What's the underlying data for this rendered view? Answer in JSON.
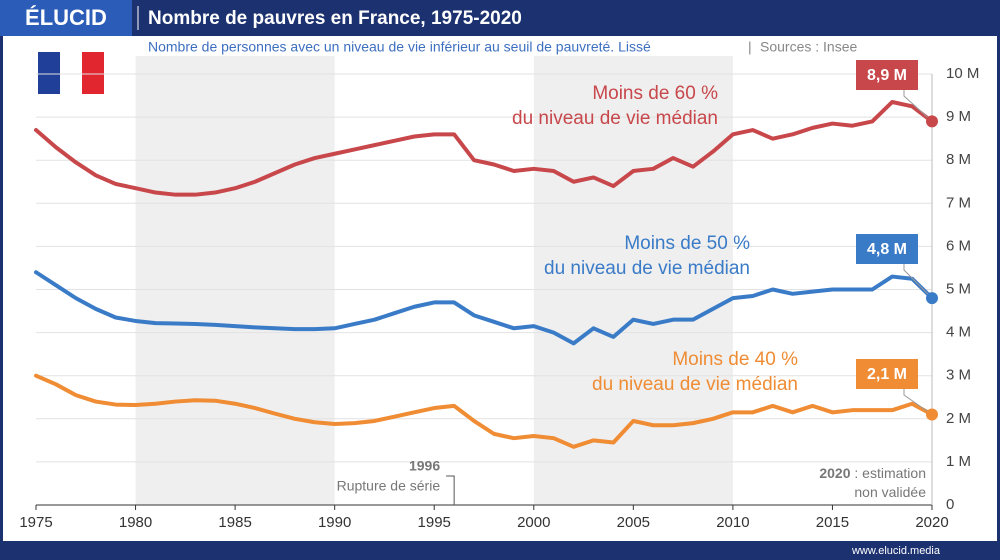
{
  "header": {
    "logo": "ÉLUCID",
    "footer": "www.elucid.media"
  },
  "chart_data": {
    "type": "line",
    "title": "Nombre de pauvres en France, 1975-2020",
    "subtitle": "Nombre de personnes avec un niveau de vie inférieur au seuil de pauvreté. Lissé",
    "source": "Sources : Insee",
    "x": [
      1975,
      1976,
      1977,
      1978,
      1979,
      1980,
      1981,
      1982,
      1983,
      1984,
      1985,
      1986,
      1987,
      1988,
      1989,
      1990,
      1991,
      1992,
      1993,
      1994,
      1995,
      1996,
      1997,
      1998,
      1999,
      2000,
      2001,
      2002,
      2003,
      2004,
      2005,
      2006,
      2007,
      2008,
      2009,
      2010,
      2011,
      2012,
      2013,
      2014,
      2015,
      2016,
      2017,
      2018,
      2019,
      2020
    ],
    "xlim": [
      1975,
      2020
    ],
    "xticks": [
      1975,
      1980,
      1985,
      1990,
      1995,
      2000,
      2005,
      2010,
      2015,
      2020
    ],
    "ylim": [
      0,
      10
    ],
    "yticks": [
      {
        "value": 0,
        "label": "0"
      },
      {
        "value": 1,
        "label": "1 M"
      },
      {
        "value": 2,
        "label": "2 M"
      },
      {
        "value": 3,
        "label": "3 M"
      },
      {
        "value": 4,
        "label": "4 M"
      },
      {
        "value": 5,
        "label": "5 M"
      },
      {
        "value": 6,
        "label": "6 M"
      },
      {
        "value": 7,
        "label": "7 M"
      },
      {
        "value": 8,
        "label": "8 M"
      },
      {
        "value": 9,
        "label": "9 M"
      },
      {
        "value": 10,
        "label": "10 M"
      }
    ],
    "series": [
      {
        "name": "Moins de 60 %\ndu niveau de vie médian",
        "color": "#c8474b",
        "values": [
          8.7,
          8.3,
          7.95,
          7.65,
          7.45,
          7.35,
          7.25,
          7.2,
          7.2,
          7.25,
          7.35,
          7.5,
          7.7,
          7.9,
          8.05,
          8.15,
          8.25,
          8.35,
          8.45,
          8.55,
          8.6,
          8.6,
          8.0,
          7.9,
          7.75,
          7.8,
          7.75,
          7.5,
          7.6,
          7.4,
          7.75,
          7.8,
          8.05,
          7.85,
          8.2,
          8.6,
          8.7,
          8.5,
          8.6,
          8.75,
          8.85,
          8.8,
          8.9,
          9.35,
          9.25,
          8.9
        ],
        "value_labels": [
          null,
          null,
          null,
          null,
          null,
          null,
          null,
          null,
          null,
          null,
          null,
          null,
          null,
          null,
          null,
          null,
          null,
          null,
          null,
          null,
          null,
          null,
          null,
          null,
          null,
          null,
          null,
          null,
          null,
          null,
          null,
          null,
          null,
          null,
          null,
          null,
          null,
          null,
          null,
          null,
          null,
          null,
          null,
          null,
          null,
          "8,9 M"
        ]
      },
      {
        "name": "Moins de 50 %\ndu niveau de vie médian",
        "color": "#3a7bc8",
        "values": [
          5.4,
          5.1,
          4.8,
          4.55,
          4.35,
          4.27,
          4.22,
          4.21,
          4.2,
          4.18,
          4.15,
          4.12,
          4.1,
          4.08,
          4.08,
          4.1,
          4.2,
          4.3,
          4.45,
          4.6,
          4.7,
          4.7,
          4.4,
          4.25,
          4.1,
          4.15,
          4.0,
          3.75,
          4.1,
          3.9,
          4.3,
          4.2,
          4.3,
          4.3,
          4.55,
          4.8,
          4.85,
          5.0,
          4.9,
          4.95,
          5.0,
          5.0,
          5.0,
          5.3,
          5.25,
          4.8
        ],
        "value_labels": [
          null,
          null,
          null,
          null,
          null,
          null,
          null,
          null,
          null,
          null,
          null,
          null,
          null,
          null,
          null,
          null,
          null,
          null,
          null,
          null,
          null,
          null,
          null,
          null,
          null,
          null,
          null,
          null,
          null,
          null,
          null,
          null,
          null,
          null,
          null,
          null,
          null,
          null,
          null,
          null,
          null,
          null,
          null,
          null,
          null,
          "4,8 M"
        ]
      },
      {
        "name": "Moins de 40 %\ndu niveau de vie médian",
        "color": "#ef8c34",
        "values": [
          3.0,
          2.8,
          2.55,
          2.4,
          2.33,
          2.32,
          2.35,
          2.4,
          2.43,
          2.42,
          2.35,
          2.25,
          2.12,
          2.0,
          1.92,
          1.88,
          1.9,
          1.95,
          2.05,
          2.15,
          2.25,
          2.3,
          1.95,
          1.65,
          1.55,
          1.6,
          1.55,
          1.35,
          1.5,
          1.45,
          1.95,
          1.85,
          1.85,
          1.9,
          2.0,
          2.15,
          2.15,
          2.3,
          2.15,
          2.3,
          2.15,
          2.2,
          2.2,
          2.2,
          2.35,
          2.1
        ],
        "value_labels": [
          null,
          null,
          null,
          null,
          null,
          null,
          null,
          null,
          null,
          null,
          null,
          null,
          null,
          null,
          null,
          null,
          null,
          null,
          null,
          null,
          null,
          null,
          null,
          null,
          null,
          null,
          null,
          null,
          null,
          null,
          null,
          null,
          null,
          null,
          null,
          null,
          null,
          null,
          null,
          null,
          null,
          null,
          null,
          null,
          null,
          "2,1 M"
        ]
      }
    ],
    "annotations": [
      {
        "x": 1996,
        "title": "1996",
        "text": "Rupture de série"
      },
      {
        "title": "2020",
        "text": " : estimation\nnon validée"
      }
    ]
  }
}
